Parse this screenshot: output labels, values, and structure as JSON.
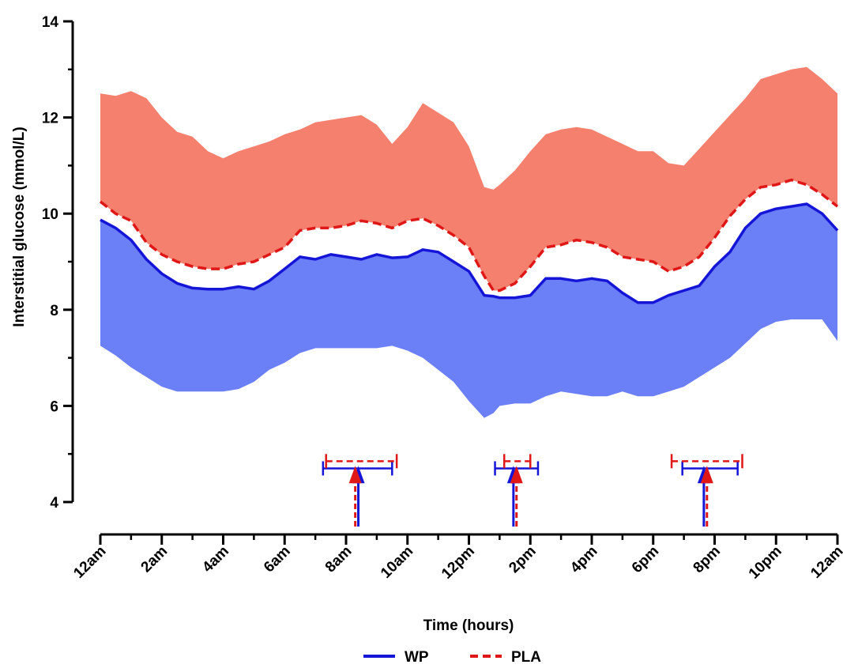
{
  "chart_data": {
    "type": "area",
    "xlabel": "Time (hours)",
    "ylabel": "Interstitial glucose (mmol/L)",
    "xlim": [
      0,
      24
    ],
    "ylim": [
      3.6,
      14
    ],
    "x_ticks": [
      {
        "h": 0,
        "label": "12am"
      },
      {
        "h": 2,
        "label": "2am"
      },
      {
        "h": 4,
        "label": "4am"
      },
      {
        "h": 6,
        "label": "6am"
      },
      {
        "h": 8,
        "label": "8am"
      },
      {
        "h": 10,
        "label": "10am"
      },
      {
        "h": 12,
        "label": "12pm"
      },
      {
        "h": 14,
        "label": "2pm"
      },
      {
        "h": 16,
        "label": "4pm"
      },
      {
        "h": 18,
        "label": "6pm"
      },
      {
        "h": 20,
        "label": "8pm"
      },
      {
        "h": 22,
        "label": "10pm"
      },
      {
        "h": 24,
        "label": "12am"
      }
    ],
    "y_ticks": [
      4,
      6,
      8,
      10,
      12,
      14
    ],
    "x": [
      0,
      0.5,
      1,
      1.5,
      2,
      2.5,
      3,
      3.5,
      4,
      4.5,
      5,
      5.5,
      6,
      6.5,
      7,
      7.5,
      8,
      8.5,
      9,
      9.5,
      10,
      10.5,
      11,
      11.5,
      12,
      12.5,
      12.8,
      13,
      13.5,
      14,
      14.5,
      15,
      15.5,
      16,
      16.5,
      17,
      17.5,
      18,
      18.5,
      19,
      19.5,
      20,
      20.5,
      21,
      21.5,
      22,
      22.5,
      23,
      23.5,
      24
    ],
    "series": [
      {
        "name": "WP",
        "color": "#1515d8",
        "dash": "solid",
        "band_color": "#6b7ff7",
        "mean": [
          9.87,
          9.7,
          9.45,
          9.05,
          8.75,
          8.55,
          8.45,
          8.43,
          8.43,
          8.48,
          8.43,
          8.6,
          8.85,
          9.1,
          9.05,
          9.15,
          9.1,
          9.05,
          9.15,
          9.08,
          9.1,
          9.25,
          9.2,
          9.0,
          8.8,
          8.3,
          8.28,
          8.25,
          8.25,
          8.3,
          8.65,
          8.65,
          8.6,
          8.65,
          8.6,
          8.35,
          8.15,
          8.15,
          8.3,
          8.4,
          8.5,
          8.9,
          9.2,
          9.7,
          10.0,
          10.1,
          10.15,
          10.2,
          10.0,
          9.65
        ],
        "lower": [
          7.25,
          7.05,
          6.8,
          6.6,
          6.4,
          6.3,
          6.3,
          6.3,
          6.3,
          6.35,
          6.5,
          6.75,
          6.9,
          7.1,
          7.2,
          7.2,
          7.2,
          7.2,
          7.2,
          7.25,
          7.15,
          7.0,
          6.75,
          6.5,
          6.1,
          5.75,
          5.85,
          6.0,
          6.05,
          6.05,
          6.2,
          6.3,
          6.25,
          6.2,
          6.2,
          6.3,
          6.2,
          6.2,
          6.3,
          6.4,
          6.6,
          6.8,
          7.0,
          7.3,
          7.6,
          7.75,
          7.8,
          7.8,
          7.8,
          7.35
        ]
      },
      {
        "name": "PLA",
        "color": "#e01717",
        "dash": "dashed",
        "band_color": "#f5806e",
        "mean": [
          10.25,
          10.0,
          9.85,
          9.4,
          9.15,
          9.0,
          8.9,
          8.85,
          8.85,
          8.95,
          9.0,
          9.15,
          9.3,
          9.65,
          9.7,
          9.7,
          9.75,
          9.85,
          9.8,
          9.7,
          9.85,
          9.9,
          9.75,
          9.55,
          9.3,
          8.7,
          8.4,
          8.4,
          8.55,
          8.9,
          9.3,
          9.35,
          9.45,
          9.4,
          9.3,
          9.1,
          9.05,
          9.0,
          8.8,
          8.9,
          9.1,
          9.5,
          9.95,
          10.3,
          10.55,
          10.6,
          10.7,
          10.6,
          10.4,
          10.15
        ],
        "upper": [
          12.5,
          12.45,
          12.55,
          12.4,
          12.0,
          11.7,
          11.6,
          11.3,
          11.15,
          11.3,
          11.4,
          11.5,
          11.65,
          11.75,
          11.9,
          11.95,
          12.0,
          12.05,
          11.85,
          11.45,
          11.8,
          12.3,
          12.1,
          11.9,
          11.4,
          10.55,
          10.5,
          10.6,
          10.9,
          11.3,
          11.65,
          11.75,
          11.8,
          11.75,
          11.6,
          11.45,
          11.3,
          11.3,
          11.05,
          11.0,
          11.35,
          11.7,
          12.05,
          12.4,
          12.8,
          12.9,
          13.0,
          13.05,
          12.8,
          12.5
        ]
      }
    ],
    "meal_markers": [
      {
        "series": "WP",
        "time": 8.4,
        "lower": 7.25,
        "upper": 9.5,
        "y": 4.7
      },
      {
        "series": "PLA",
        "time": 8.3,
        "lower": 7.35,
        "upper": 9.65,
        "y": 4.85
      },
      {
        "series": "WP",
        "time": 13.45,
        "lower": 12.85,
        "upper": 14.25,
        "y": 4.7
      },
      {
        "series": "PLA",
        "time": 13.55,
        "lower": 13.15,
        "upper": 14.0,
        "y": 4.85
      },
      {
        "series": "WP",
        "time": 19.65,
        "lower": 18.95,
        "upper": 20.75,
        "y": 4.7
      },
      {
        "series": "PLA",
        "time": 19.75,
        "lower": 18.6,
        "upper": 20.9,
        "y": 4.85
      }
    ],
    "legend": {
      "placement": "bottom-center",
      "entries": [
        {
          "label": "WP",
          "color": "#1515d8",
          "dash": "solid"
        },
        {
          "label": "PLA",
          "color": "#e01717",
          "dash": "dashed"
        }
      ]
    }
  }
}
